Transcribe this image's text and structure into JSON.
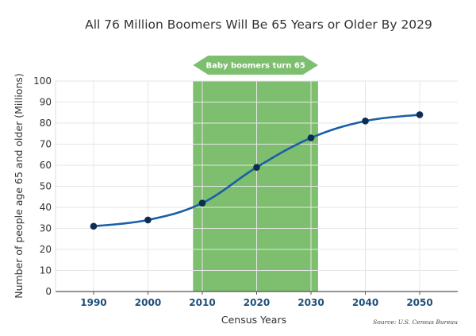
{
  "chart_data": {
    "type": "line",
    "title": "All 76 Million Boomers Will Be 65 Years or Older By 2029",
    "xlabel": "Census Years",
    "ylabel": "Number of people age 65 and older (Millions)",
    "x": [
      1990,
      2000,
      2010,
      2020,
      2030,
      2040,
      2050
    ],
    "x_tick_labels": [
      "1990",
      "2000",
      "2010",
      "2020",
      "2030",
      "2040",
      "2050"
    ],
    "y_ticks": [
      0,
      10,
      20,
      30,
      40,
      50,
      60,
      70,
      80,
      90,
      100
    ],
    "series": [
      {
        "values": [
          31,
          34,
          42,
          59,
          73,
          81,
          84
        ]
      }
    ],
    "ylim": [
      0,
      100
    ],
    "grid": true,
    "highlight_region": {
      "x_start": 2008.3,
      "x_end": 2031.3,
      "label": "Baby boomers turn 65"
    },
    "source": "Source: U.S. Census Bureau",
    "colors": {
      "line": "#1a5ea8",
      "marker": "#0d2d52",
      "region": "#7dbf6e",
      "banner": "#7dbf6e",
      "grid": "#e6e6e6",
      "x_tick": "#1f4e79"
    }
  }
}
